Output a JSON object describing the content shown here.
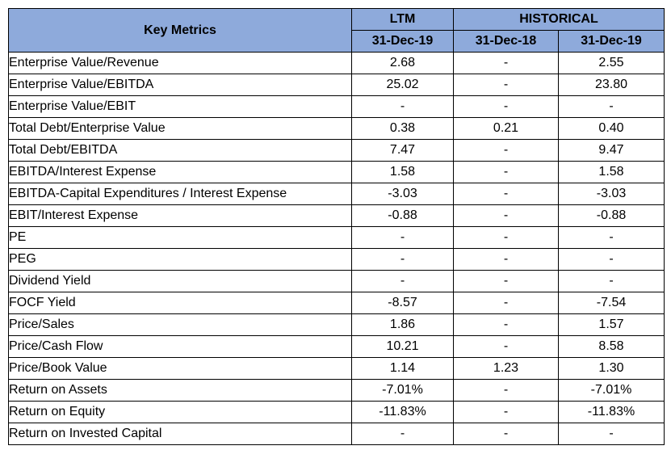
{
  "header": {
    "key_metrics": "Key Metrics",
    "ltm": "LTM",
    "historical": "HISTORICAL",
    "dates": [
      "31-Dec-19",
      "31-Dec-18",
      "31-Dec-19"
    ]
  },
  "rows": [
    {
      "label": "Enterprise Value/Revenue",
      "v": [
        "2.68",
        "-",
        "2.55"
      ]
    },
    {
      "label": "Enterprise Value/EBITDA",
      "v": [
        "25.02",
        "-",
        "23.80"
      ]
    },
    {
      "label": "Enterprise Value/EBIT",
      "v": [
        "-",
        "-",
        "-"
      ]
    },
    {
      "label": "Total Debt/Enterprise Value",
      "v": [
        "0.38",
        "0.21",
        "0.40"
      ]
    },
    {
      "label": "Total Debt/EBITDA",
      "v": [
        "7.47",
        "-",
        "9.47"
      ]
    },
    {
      "label": "EBITDA/Interest Expense",
      "v": [
        "1.58",
        "-",
        "1.58"
      ]
    },
    {
      "label": "EBITDA-Capital Expenditures / Interest Expense",
      "v": [
        "-3.03",
        "-",
        "-3.03"
      ]
    },
    {
      "label": "EBIT/Interest Expense",
      "v": [
        "-0.88",
        "-",
        "-0.88"
      ]
    },
    {
      "label": "PE",
      "v": [
        "-",
        "-",
        "-"
      ]
    },
    {
      "label": "PEG",
      "v": [
        "-",
        "-",
        "-"
      ]
    },
    {
      "label": "Dividend Yield",
      "v": [
        "-",
        "-",
        "-"
      ]
    },
    {
      "label": "FOCF Yield",
      "v": [
        "-8.57",
        "-",
        "-7.54"
      ]
    },
    {
      "label": "Price/Sales",
      "v": [
        "1.86",
        "-",
        "1.57"
      ]
    },
    {
      "label": "Price/Cash Flow",
      "v": [
        "10.21",
        "-",
        "8.58"
      ]
    },
    {
      "label": "Price/Book Value",
      "v": [
        "1.14",
        "1.23",
        "1.30"
      ]
    },
    {
      "label": "Return on Assets",
      "v": [
        "-7.01%",
        "-",
        "-7.01%"
      ]
    },
    {
      "label": "Return on Equity",
      "v": [
        "-11.83%",
        "-",
        "-11.83%"
      ]
    },
    {
      "label": "Return on Invested Capital",
      "v": [
        "-",
        "-",
        "-"
      ]
    }
  ]
}
